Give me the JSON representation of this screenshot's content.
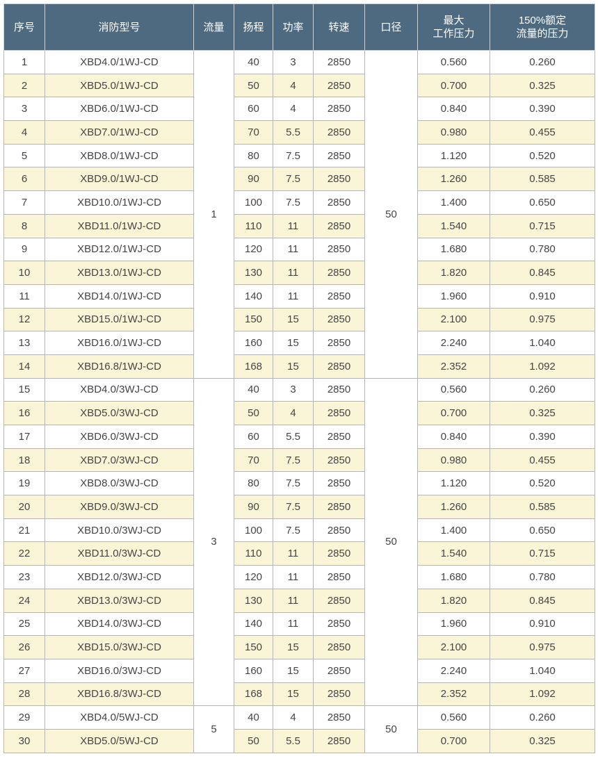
{
  "table": {
    "headers": [
      "序号",
      "消防型号",
      "流量",
      "扬程",
      "功率",
      "转速",
      "口径",
      [
        "最大",
        "工作压力"
      ],
      [
        "150%额定",
        "流量的压力"
      ]
    ],
    "groups": [
      {
        "flow": "1",
        "caliber": "50",
        "rows": [
          [
            "1",
            "XBD4.0/1WJ-CD",
            "40",
            "3",
            "2850",
            "0.560",
            "0.260"
          ],
          [
            "2",
            "XBD5.0/1WJ-CD",
            "50",
            "4",
            "2850",
            "0.700",
            "0.325"
          ],
          [
            "3",
            "XBD6.0/1WJ-CD",
            "60",
            "4",
            "2850",
            "0.840",
            "0.390"
          ],
          [
            "4",
            "XBD7.0/1WJ-CD",
            "70",
            "5.5",
            "2850",
            "0.980",
            "0.455"
          ],
          [
            "5",
            "XBD8.0/1WJ-CD",
            "80",
            "7.5",
            "2850",
            "1.120",
            "0.520"
          ],
          [
            "6",
            "XBD9.0/1WJ-CD",
            "90",
            "7.5",
            "2850",
            "1.260",
            "0.585"
          ],
          [
            "7",
            "XBD10.0/1WJ-CD",
            "100",
            "7.5",
            "2850",
            "1.400",
            "0.650"
          ],
          [
            "8",
            "XBD11.0/1WJ-CD",
            "110",
            "11",
            "2850",
            "1.540",
            "0.715"
          ],
          [
            "9",
            "XBD12.0/1WJ-CD",
            "120",
            "11",
            "2850",
            "1.680",
            "0.780"
          ],
          [
            "10",
            "XBD13.0/1WJ-CD",
            "130",
            "11",
            "2850",
            "1.820",
            "0.845"
          ],
          [
            "11",
            "XBD14.0/1WJ-CD",
            "140",
            "11",
            "2850",
            "1.960",
            "0.910"
          ],
          [
            "12",
            "XBD15.0/1WJ-CD",
            "150",
            "15",
            "2850",
            "2.100",
            "0.975"
          ],
          [
            "13",
            "XBD16.0/1WJ-CD",
            "160",
            "15",
            "2850",
            "2.240",
            "1.040"
          ],
          [
            "14",
            "XBD16.8/1WJ-CD",
            "168",
            "15",
            "2850",
            "2.352",
            "1.092"
          ]
        ]
      },
      {
        "flow": "3",
        "caliber": "50",
        "rows": [
          [
            "15",
            "XBD4.0/3WJ-CD",
            "40",
            "3",
            "2850",
            "0.560",
            "0.260"
          ],
          [
            "16",
            "XBD5.0/3WJ-CD",
            "50",
            "4",
            "2850",
            "0.700",
            "0.325"
          ],
          [
            "17",
            "XBD6.0/3WJ-CD",
            "60",
            "5.5",
            "2850",
            "0.840",
            "0.390"
          ],
          [
            "18",
            "XBD7.0/3WJ-CD",
            "70",
            "7.5",
            "2850",
            "0.980",
            "0.455"
          ],
          [
            "19",
            "XBD8.0/3WJ-CD",
            "80",
            "7.5",
            "2850",
            "1.120",
            "0.520"
          ],
          [
            "20",
            "XBD9.0/3WJ-CD",
            "90",
            "7.5",
            "2850",
            "1.260",
            "0.585"
          ],
          [
            "21",
            "XBD10.0/3WJ-CD",
            "100",
            "7.5",
            "2850",
            "1.400",
            "0.650"
          ],
          [
            "22",
            "XBD11.0/3WJ-CD",
            "110",
            "11",
            "2850",
            "1.540",
            "0.715"
          ],
          [
            "23",
            "XBD12.0/3WJ-CD",
            "120",
            "11",
            "2850",
            "1.680",
            "0.780"
          ],
          [
            "24",
            "XBD13.0/3WJ-CD",
            "130",
            "11",
            "2850",
            "1.820",
            "0.845"
          ],
          [
            "25",
            "XBD14.0/3WJ-CD",
            "140",
            "11",
            "2850",
            "1.960",
            "0.910"
          ],
          [
            "26",
            "XBD15.0/3WJ-CD",
            "150",
            "15",
            "2850",
            "2.100",
            "0.975"
          ],
          [
            "27",
            "XBD16.0/3WJ-CD",
            "160",
            "15",
            "2850",
            "2.240",
            "1.040"
          ],
          [
            "28",
            "XBD16.8/3WJ-CD",
            "168",
            "15",
            "2850",
            "2.352",
            "1.092"
          ]
        ]
      },
      {
        "flow": "5",
        "caliber": "50",
        "rows": [
          [
            "29",
            "XBD4.0/5WJ-CD",
            "40",
            "4",
            "2850",
            "0.560",
            "0.260"
          ],
          [
            "30",
            "XBD5.0/5WJ-CD",
            "50",
            "5.5",
            "2850",
            "0.700",
            "0.325"
          ]
        ]
      }
    ]
  }
}
